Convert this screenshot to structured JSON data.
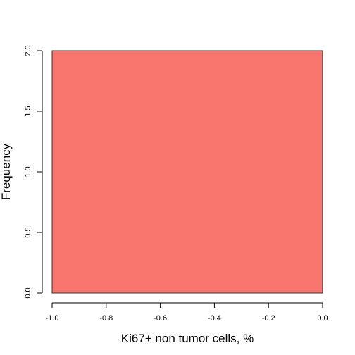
{
  "chart_data": {
    "type": "bar",
    "title": "",
    "xlabel": "Ki67+ non tumor cells, %",
    "ylabel": "Frequency",
    "bins": [
      {
        "x0": -1.0,
        "x1": 0.0,
        "count": 2
      }
    ],
    "xlim": [
      -1.0,
      0.0
    ],
    "ylim": [
      0,
      2
    ],
    "xticks": [
      -1.0,
      -0.8,
      -0.6,
      -0.4,
      -0.2,
      0.0
    ],
    "xtick_labels": [
      "-1.0",
      "-0.8",
      "-0.6",
      "-0.4",
      "-0.2",
      "0.0"
    ],
    "yticks": [
      0,
      0.5,
      1,
      1.5,
      2
    ],
    "ytick_labels": [
      "0.0",
      "0.5",
      "1.0",
      "1.5",
      "2.0"
    ],
    "grid": false,
    "bar_color": "#f8766d",
    "bar_border_color": "#333333"
  }
}
